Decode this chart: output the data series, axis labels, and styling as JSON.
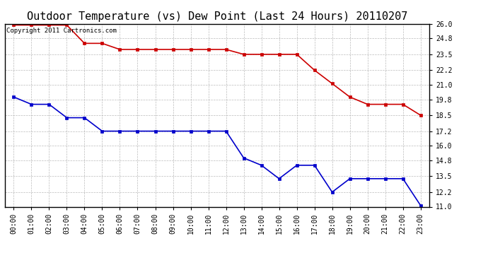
{
  "title": "Outdoor Temperature (vs) Dew Point (Last 24 Hours) 20110207",
  "copyright_text": "Copyright 2011 Cartronics.com",
  "x_labels": [
    "00:00",
    "01:00",
    "02:00",
    "03:00",
    "04:00",
    "05:00",
    "06:00",
    "07:00",
    "08:00",
    "09:00",
    "10:00",
    "11:00",
    "12:00",
    "13:00",
    "14:00",
    "15:00",
    "16:00",
    "17:00",
    "18:00",
    "19:00",
    "20:00",
    "21:00",
    "22:00",
    "23:00"
  ],
  "temp_data": [
    25.9,
    25.9,
    25.9,
    25.9,
    24.4,
    24.4,
    23.9,
    23.9,
    23.9,
    23.9,
    23.9,
    23.9,
    23.9,
    23.5,
    23.5,
    23.5,
    23.5,
    22.2,
    21.1,
    20.0,
    19.4,
    19.4,
    19.4,
    18.5
  ],
  "dew_data": [
    20.0,
    19.4,
    19.4,
    18.3,
    18.3,
    17.2,
    17.2,
    17.2,
    17.2,
    17.2,
    17.2,
    17.2,
    17.2,
    15.0,
    14.4,
    13.3,
    14.4,
    14.4,
    12.2,
    13.3,
    13.3,
    13.3,
    13.3,
    11.1
  ],
  "temp_color": "#cc0000",
  "dew_color": "#0000cc",
  "marker": "s",
  "marker_size": 3,
  "line_width": 1.2,
  "y_min": 11.0,
  "y_max": 26.0,
  "y_ticks": [
    11.0,
    12.2,
    13.5,
    14.8,
    16.0,
    17.2,
    18.5,
    19.8,
    21.0,
    22.2,
    23.5,
    24.8,
    26.0
  ],
  "background_color": "#ffffff",
  "grid_color": "#aaaaaa",
  "title_fontsize": 11,
  "tick_fontsize": 7,
  "copyright_fontsize": 6.5
}
